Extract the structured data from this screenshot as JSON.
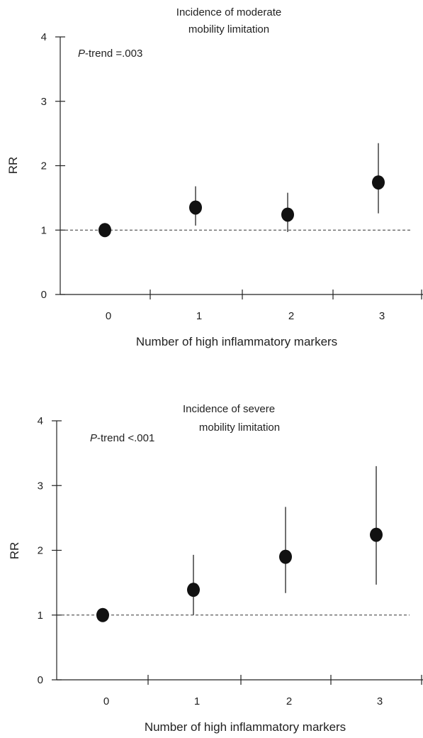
{
  "chart_data": [
    {
      "type": "scatter",
      "title_lines": [
        "Incidence of moderate",
        "mobility limitation"
      ],
      "annotation": {
        "italic": "P",
        "rest": "-trend =.003"
      },
      "xlabel": "Number of high inflammatory markers",
      "ylabel": "RR",
      "ylim": [
        0,
        4
      ],
      "yticks": [
        "0",
        "1",
        "2",
        "3",
        "4"
      ],
      "categories": [
        "0",
        "1",
        "2",
        "3"
      ],
      "reference_line": 1,
      "points": [
        {
          "category": "0",
          "rr": 1.0,
          "lower": 1.0,
          "upper": 1.0
        },
        {
          "category": "1",
          "rr": 1.35,
          "lower": 1.07,
          "upper": 1.68
        },
        {
          "category": "2",
          "rr": 1.24,
          "lower": 0.97,
          "upper": 1.58
        },
        {
          "category": "3",
          "rr": 1.74,
          "lower": 1.26,
          "upper": 2.35
        }
      ]
    },
    {
      "type": "scatter",
      "title_lines": [
        "Incidence of severe",
        "mobility limitation"
      ],
      "annotation": {
        "italic": "P",
        "rest": "-trend <.001"
      },
      "xlabel": "Number of high inflammatory markers",
      "ylabel": "RR",
      "ylim": [
        0,
        4
      ],
      "yticks": [
        "0",
        "1",
        "2",
        "3",
        "4"
      ],
      "categories": [
        "0",
        "1",
        "2",
        "3"
      ],
      "reference_line": 1,
      "points": [
        {
          "category": "0",
          "rr": 1.0,
          "lower": 1.0,
          "upper": 1.0
        },
        {
          "category": "1",
          "rr": 1.39,
          "lower": 1.0,
          "upper": 1.93
        },
        {
          "category": "2",
          "rr": 1.9,
          "lower": 1.34,
          "upper": 2.67
        },
        {
          "category": "3",
          "rr": 2.24,
          "lower": 1.47,
          "upper": 3.3
        }
      ]
    }
  ]
}
